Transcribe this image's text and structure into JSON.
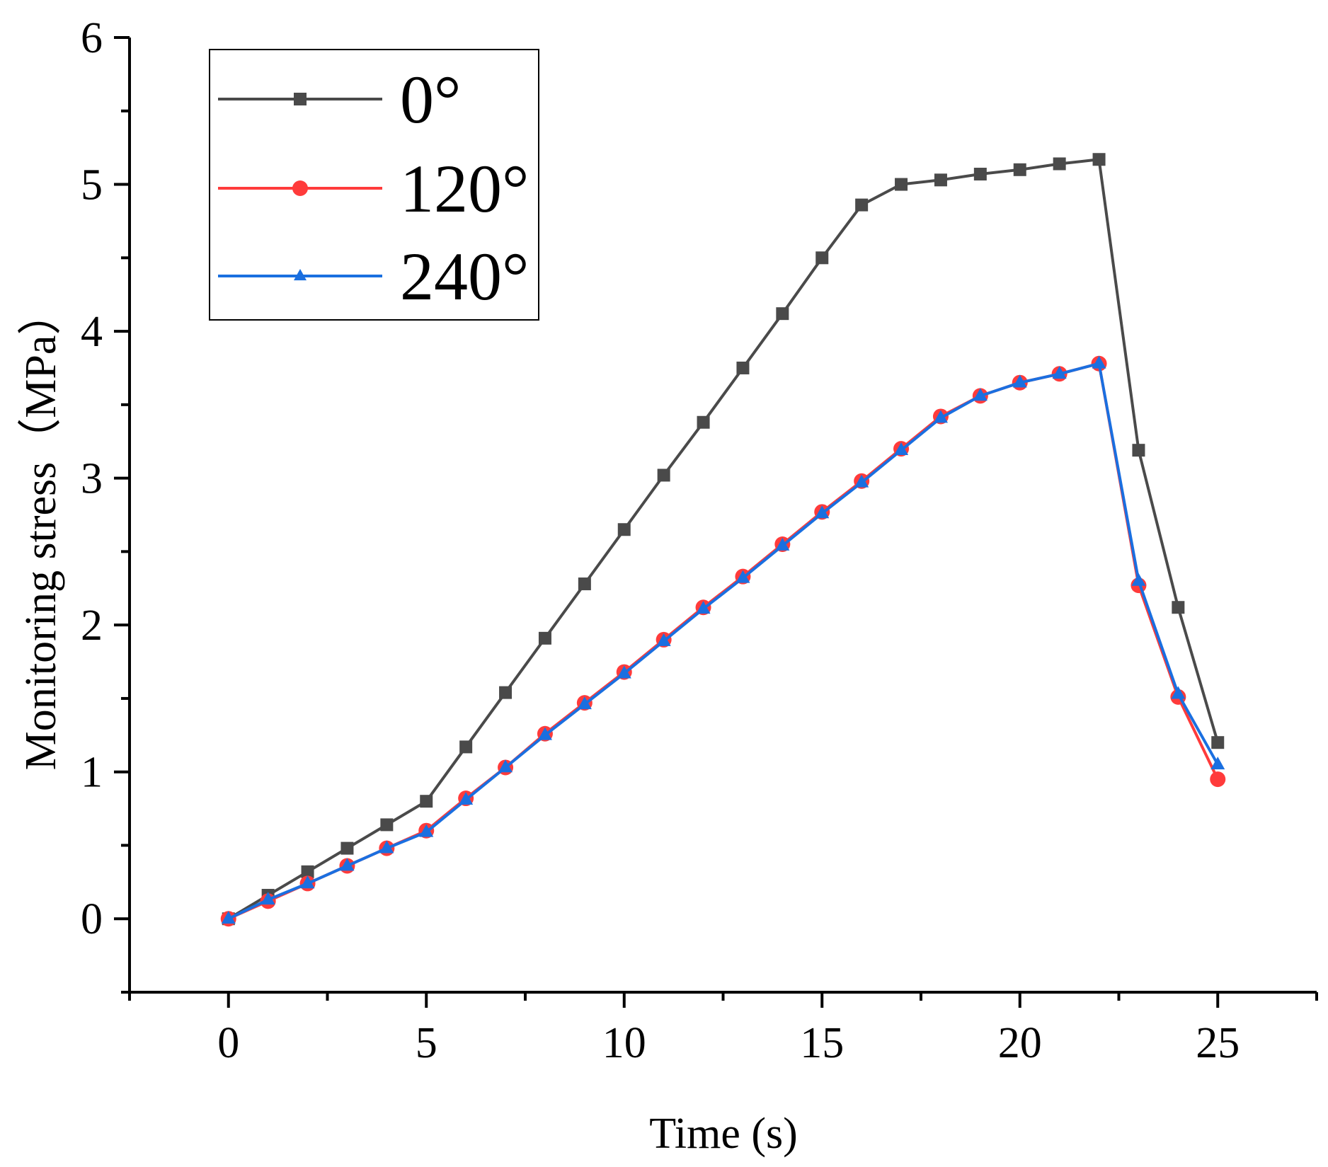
{
  "chart_data": {
    "type": "line",
    "title": "",
    "xlabel": "Time (s)",
    "ylabel": "Monitoring stress（MPa）",
    "xlim": [
      -2.5,
      27.5
    ],
    "ylim": [
      -0.5,
      6
    ],
    "x_ticks": [
      0,
      5,
      10,
      15,
      20,
      25
    ],
    "x_tick_labels": [
      "0",
      "5",
      "10",
      "15",
      "20",
      "25"
    ],
    "y_ticks": [
      0,
      1,
      2,
      3,
      4,
      5,
      6
    ],
    "y_tick_labels": [
      "0",
      "1",
      "2",
      "3",
      "4",
      "5",
      "6"
    ],
    "grid": false,
    "legend_position": "top-left",
    "x": [
      0,
      1,
      2,
      3,
      4,
      5,
      6,
      7,
      8,
      9,
      10,
      11,
      12,
      13,
      14,
      15,
      16,
      17,
      18,
      19,
      20,
      21,
      22,
      23,
      24,
      25
    ],
    "series": [
      {
        "name": "0°",
        "color": "#4a4a4a",
        "marker": "square",
        "values": [
          0.0,
          0.16,
          0.32,
          0.48,
          0.64,
          0.8,
          1.17,
          1.54,
          1.91,
          2.28,
          2.65,
          3.02,
          3.38,
          3.75,
          4.12,
          4.5,
          4.86,
          5.0,
          5.03,
          5.07,
          5.1,
          5.14,
          5.17,
          3.19,
          2.12,
          1.2
        ]
      },
      {
        "name": "120°",
        "color": "#ff3b3b",
        "marker": "circle",
        "values": [
          0.0,
          0.12,
          0.24,
          0.36,
          0.48,
          0.6,
          0.82,
          1.03,
          1.26,
          1.47,
          1.68,
          1.9,
          2.12,
          2.33,
          2.55,
          2.77,
          2.98,
          3.2,
          3.42,
          3.56,
          3.65,
          3.71,
          3.78,
          2.27,
          1.51,
          0.95
        ]
      },
      {
        "name": "240°",
        "color": "#1a6fe0",
        "marker": "triangle",
        "values": [
          0.0,
          0.13,
          0.24,
          0.36,
          0.48,
          0.59,
          0.81,
          1.03,
          1.25,
          1.46,
          1.67,
          1.89,
          2.11,
          2.32,
          2.54,
          2.76,
          2.97,
          3.19,
          3.41,
          3.56,
          3.65,
          3.71,
          3.78,
          2.3,
          1.53,
          1.05
        ]
      }
    ]
  }
}
